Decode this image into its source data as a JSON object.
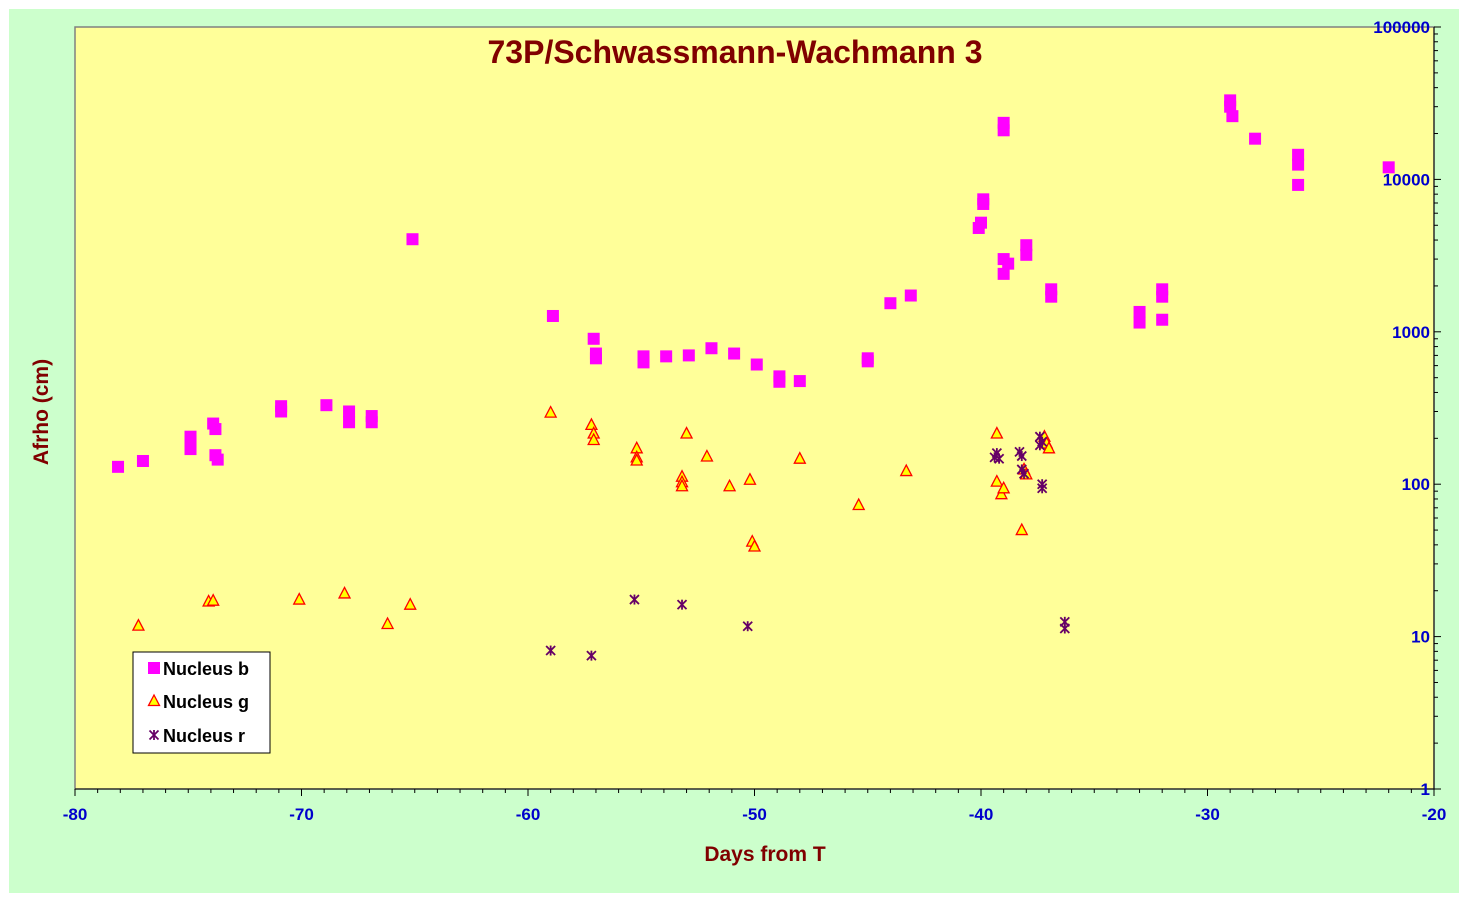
{
  "colors": {
    "chart_area": "#CCFFCC",
    "plot_area": "#FFFF99",
    "title": "#800000",
    "axis_label": "#800000",
    "tick_label": "#0000CC",
    "nucleus_b": "#FF00FF",
    "nucleus_g_fill": "#FFFF00",
    "nucleus_g_stroke": "#FF0000",
    "nucleus_r": "#660066"
  },
  "chart_data": {
    "type": "scatter",
    "title": "73P/Schwassmann-Wachmann 3",
    "xlabel": "Days from T",
    "ylabel": "Afrho (cm)",
    "xlim": [
      -80,
      -20
    ],
    "ylim": [
      1,
      100000
    ],
    "y_scale": "log",
    "y_axis_position": "right",
    "grid": false,
    "legend_position": "bottom-left",
    "x_ticks": [
      "-80",
      "-70",
      "-60",
      "-50",
      "-40",
      "-30",
      "-20"
    ],
    "y_ticks": [
      "1",
      "10",
      "100",
      "1000",
      "10000",
      "100000"
    ],
    "series": [
      {
        "name": "Nucleus b",
        "marker": "square",
        "points": [
          [
            -78.1,
            130
          ],
          [
            -77.0,
            142
          ],
          [
            -74.9,
            170
          ],
          [
            -74.9,
            190
          ],
          [
            -74.9,
            205
          ],
          [
            -73.9,
            250
          ],
          [
            -73.8,
            230
          ],
          [
            -73.8,
            155
          ],
          [
            -73.7,
            145
          ],
          [
            -70.9,
            300
          ],
          [
            -70.9,
            325
          ],
          [
            -68.9,
            330
          ],
          [
            -67.9,
            300
          ],
          [
            -67.9,
            255
          ],
          [
            -66.9,
            280
          ],
          [
            -66.9,
            255
          ],
          [
            -65.1,
            4050
          ],
          [
            -58.9,
            1270
          ],
          [
            -57.1,
            900
          ],
          [
            -57.0,
            720
          ],
          [
            -57.0,
            670
          ],
          [
            -54.9,
            690
          ],
          [
            -54.9,
            630
          ],
          [
            -53.9,
            690
          ],
          [
            -52.9,
            700
          ],
          [
            -51.9,
            780
          ],
          [
            -50.9,
            720
          ],
          [
            -49.9,
            610
          ],
          [
            -48.9,
            510
          ],
          [
            -48.9,
            470
          ],
          [
            -48.0,
            475
          ],
          [
            -45.0,
            670
          ],
          [
            -45.0,
            640
          ],
          [
            -44.0,
            1540
          ],
          [
            -43.1,
            1730
          ],
          [
            -40.1,
            4800
          ],
          [
            -40.0,
            5200
          ],
          [
            -39.9,
            6900
          ],
          [
            -39.9,
            7400
          ],
          [
            -39.0,
            23500
          ],
          [
            -39.0,
            21000
          ],
          [
            -39.0,
            3000
          ],
          [
            -39.0,
            2400
          ],
          [
            -38.8,
            2800
          ],
          [
            -38.0,
            3700
          ],
          [
            -38.0,
            3200
          ],
          [
            -36.9,
            1900
          ],
          [
            -36.9,
            1700
          ],
          [
            -33.0,
            1350
          ],
          [
            -33.0,
            1150
          ],
          [
            -32.0,
            1900
          ],
          [
            -32.0,
            1700
          ],
          [
            -32.0,
            1200
          ],
          [
            -29.0,
            33000
          ],
          [
            -29.0,
            30000
          ],
          [
            -28.9,
            26000
          ],
          [
            -27.9,
            18500
          ],
          [
            -26.0,
            14500
          ],
          [
            -26.0,
            12500
          ],
          [
            -26.0,
            9200
          ],
          [
            -22.0,
            12000
          ]
        ]
      },
      {
        "name": "Nucleus g",
        "marker": "triangle",
        "points": [
          [
            -77.2,
            11.8
          ],
          [
            -74.1,
            17
          ],
          [
            -73.9,
            17.2
          ],
          [
            -70.1,
            17.5
          ],
          [
            -68.1,
            19.2
          ],
          [
            -66.2,
            12.1
          ],
          [
            -65.2,
            16.2
          ],
          [
            -59.0,
            295
          ],
          [
            -57.2,
            245
          ],
          [
            -57.1,
            215
          ],
          [
            -57.1,
            195
          ],
          [
            -55.2,
            172
          ],
          [
            -55.2,
            150
          ],
          [
            -55.2,
            143
          ],
          [
            -53.2,
            112
          ],
          [
            -53.2,
            103
          ],
          [
            -53.2,
            97
          ],
          [
            -53.0,
            215
          ],
          [
            -52.1,
            152
          ],
          [
            -51.1,
            97
          ],
          [
            -50.2,
            107
          ],
          [
            -50.1,
            42
          ],
          [
            -50.0,
            39
          ],
          [
            -48.0,
            147
          ],
          [
            -45.4,
            73
          ],
          [
            -43.3,
            122
          ],
          [
            -39.3,
            215
          ],
          [
            -39.3,
            104
          ],
          [
            -39.1,
            86
          ],
          [
            -39.0,
            94
          ],
          [
            -38.2,
            50
          ],
          [
            -38.1,
            125
          ],
          [
            -38.0,
            116
          ],
          [
            -37.2,
            205
          ],
          [
            -37.1,
            185
          ],
          [
            -37.0,
            172
          ]
        ]
      },
      {
        "name": "Nucleus r",
        "marker": "star",
        "points": [
          [
            -59.0,
            8.1
          ],
          [
            -57.2,
            7.5
          ],
          [
            -55.3,
            17.5
          ],
          [
            -53.2,
            16.2
          ],
          [
            -50.3,
            11.7
          ],
          [
            -39.4,
            150
          ],
          [
            -39.3,
            160
          ],
          [
            -39.2,
            147
          ],
          [
            -38.3,
            163
          ],
          [
            -38.2,
            153
          ],
          [
            -38.2,
            125
          ],
          [
            -38.1,
            117
          ],
          [
            -37.4,
            205
          ],
          [
            -37.4,
            180
          ],
          [
            -37.3,
            190
          ],
          [
            -37.3,
            100
          ],
          [
            -37.3,
            94
          ],
          [
            -36.3,
            12.5
          ],
          [
            -36.3,
            11.3
          ]
        ]
      }
    ]
  }
}
